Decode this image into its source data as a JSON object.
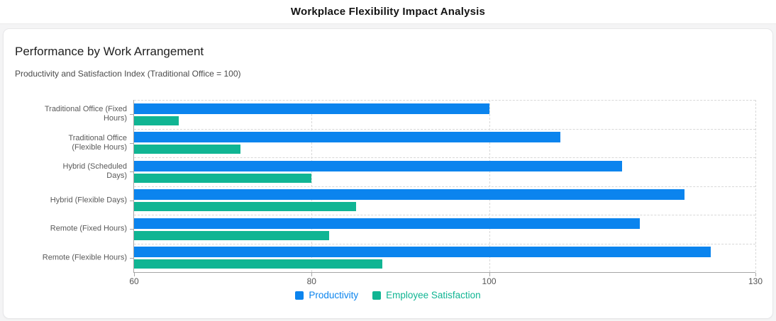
{
  "header": {
    "title": "Workplace Flexibility Impact Analysis"
  },
  "card": {
    "title": "Performance by Work Arrangement",
    "subtitle": "Productivity and Satisfaction Index (Traditional Office = 100)"
  },
  "chart_data": {
    "type": "bar",
    "orientation": "horizontal",
    "title": "Performance by Work Arrangement",
    "subtitle": "Productivity and Satisfaction Index (Traditional Office = 100)",
    "categories": [
      "Traditional Office (Fixed Hours)",
      "Traditional Office (Flexible Hours)",
      "Hybrid (Scheduled Days)",
      "Hybrid (Flexible Days)",
      "Remote (Fixed Hours)",
      "Remote (Flexible Hours)"
    ],
    "series": [
      {
        "name": "Productivity",
        "color": "#0b84ee",
        "values": [
          100,
          108,
          115,
          122,
          117,
          125
        ]
      },
      {
        "name": "Employee Satisfaction",
        "color": "#10b593",
        "values": [
          65,
          72,
          80,
          85,
          82,
          88
        ]
      }
    ],
    "xlim": [
      60,
      130
    ],
    "xticks": [
      60,
      80,
      100,
      130
    ],
    "grid": "dashed",
    "legend_position": "bottom",
    "axis_colors": {
      "grid": "#d8d8d8",
      "axis_line": "#a6a6a6",
      "tick_text": "#555555",
      "category_text": "#595959"
    }
  }
}
